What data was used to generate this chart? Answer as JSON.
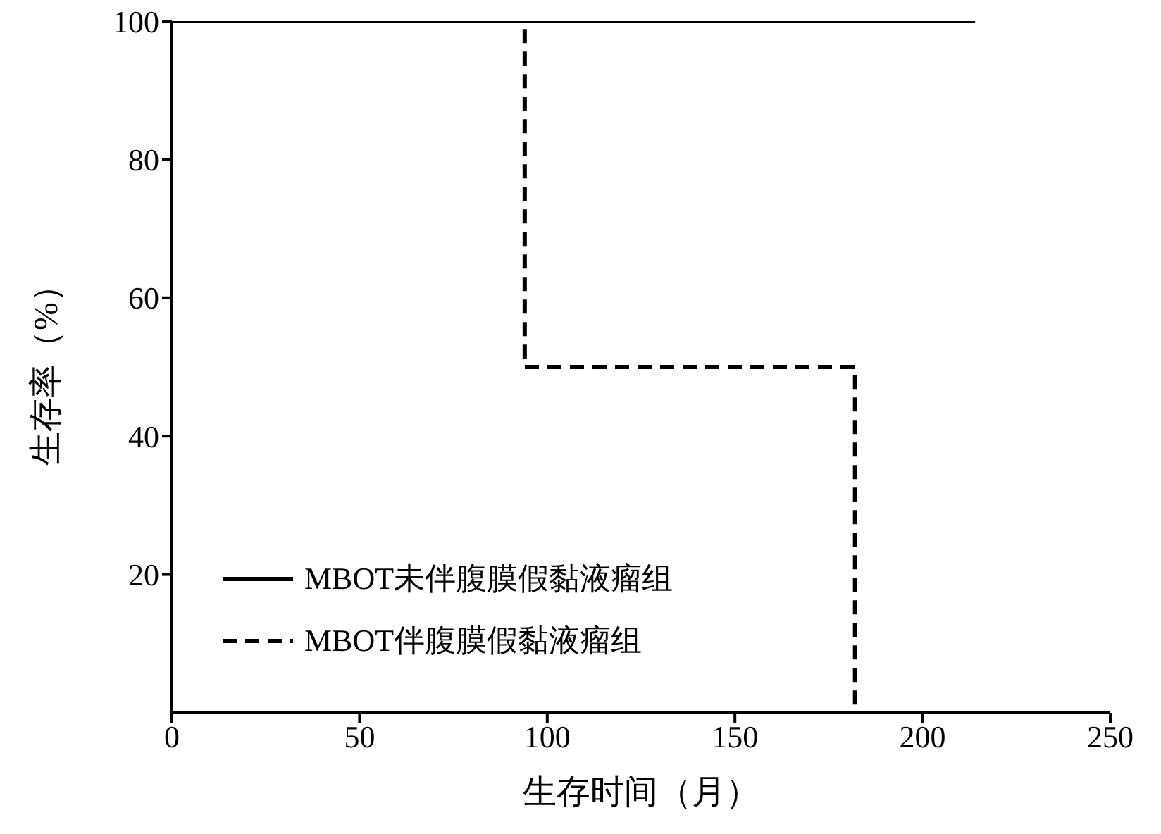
{
  "chart_data": {
    "type": "step",
    "xlabel": "生存时间（月）",
    "ylabel": "生存率（%）",
    "xlim": [
      0,
      250
    ],
    "xticks": [
      0,
      50,
      100,
      150,
      200,
      250
    ],
    "ylim": [
      0,
      100
    ],
    "yticks": [
      20,
      40,
      60,
      80,
      100
    ],
    "grid": false,
    "legend": "bottom left",
    "marker": "none",
    "series": [
      {
        "name": "MBOT未伴腹膜假黏液瘤组",
        "color": "#000000",
        "line_style": "solid",
        "x": [
          0,
          214
        ],
        "values": [
          100,
          100
        ]
      },
      {
        "name": "MBOT伴腹膜假黏液瘤组",
        "color": "#000000",
        "line_style": "dashed",
        "x": [
          0,
          94,
          182
        ],
        "values": [
          100,
          50,
          0
        ]
      }
    ]
  }
}
